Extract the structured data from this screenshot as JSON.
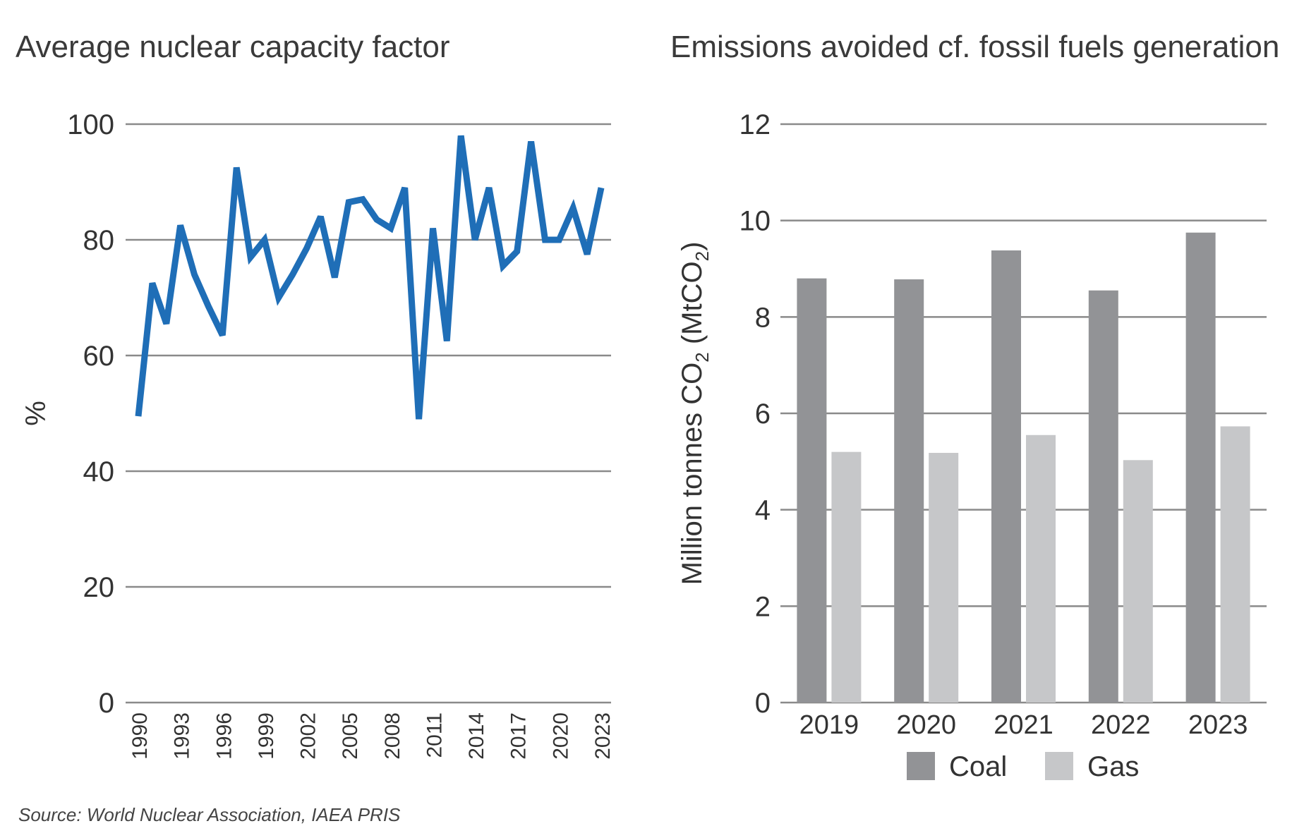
{
  "source": "Source: World Nuclear Association, IAEA PRIS",
  "chart_data": [
    {
      "type": "line",
      "title": "Average nuclear capacity factor",
      "xlabel": "",
      "ylabel": "%",
      "ylim": [
        0,
        100
      ],
      "yticks": [
        "0",
        "20",
        "40",
        "60",
        "80",
        "100"
      ],
      "xticks": [
        "1990",
        "1993",
        "1996",
        "1999",
        "2002",
        "2005",
        "2008",
        "2011",
        "2014",
        "2017",
        "2020",
        "2023"
      ],
      "grid": true,
      "color": "#1f6eb7",
      "x": [
        1990,
        1991,
        1992,
        1993,
        1994,
        1995,
        1996,
        1997,
        1998,
        1999,
        2000,
        2001,
        2002,
        2003,
        2004,
        2005,
        2006,
        2007,
        2008,
        2009,
        2010,
        2011,
        2012,
        2013,
        2014,
        2015,
        2016,
        2017,
        2018,
        2019,
        2020,
        2021,
        2022,
        2023
      ],
      "series": [
        {
          "values": [
            49.5,
            72.5,
            65.5,
            82.5,
            74,
            68.5,
            63.5,
            92.5,
            77,
            80,
            70,
            74,
            78.5,
            84,
            73.5,
            86.5,
            87,
            83.5,
            82,
            89,
            49,
            82,
            62.5,
            98,
            80,
            89,
            75.5,
            78,
            97,
            80,
            80,
            85.5,
            77.5,
            89
          ]
        }
      ]
    },
    {
      "type": "bar",
      "title": "Emissions avoided cf. fossil fuels generation",
      "xlabel": "",
      "ylabel": "Million tonnes CO2 (MtCO2)",
      "ylabel_parts": {
        "a": "Million tonnes CO",
        "sub1": "2",
        "b": " (MtCO",
        "sub2": "2",
        "c": ")"
      },
      "ylim": [
        0,
        12
      ],
      "yticks": [
        "0",
        "2",
        "4",
        "6",
        "8",
        "10",
        "12"
      ],
      "categories": [
        "2019",
        "2020",
        "2021",
        "2022",
        "2023"
      ],
      "grid": true,
      "legend_position": "bottom",
      "series": [
        {
          "name": "Coal",
          "color": "#929396",
          "values": [
            8.8,
            8.78,
            9.38,
            8.55,
            9.75
          ]
        },
        {
          "name": "Gas",
          "color": "#c6c7c9",
          "values": [
            5.2,
            5.18,
            5.55,
            5.03,
            5.73
          ]
        }
      ]
    }
  ]
}
